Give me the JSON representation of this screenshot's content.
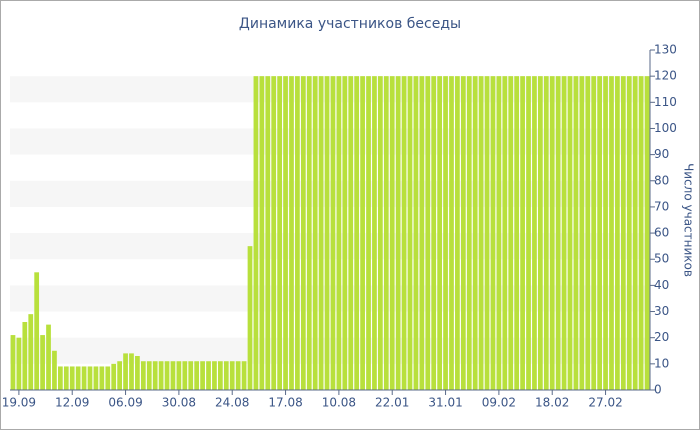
{
  "chart_data": {
    "type": "bar",
    "title": "Динамика участников беседы",
    "y_label": "Число участников",
    "categories": [
      null,
      "19.09",
      null,
      null,
      null,
      null,
      null,
      null,
      null,
      null,
      "12.09",
      null,
      null,
      null,
      null,
      null,
      null,
      null,
      null,
      "06.09",
      null,
      null,
      null,
      null,
      null,
      null,
      null,
      null,
      "30.08",
      null,
      null,
      null,
      null,
      null,
      null,
      null,
      null,
      "24.08",
      null,
      null,
      null,
      null,
      null,
      null,
      null,
      null,
      "17.08",
      null,
      null,
      null,
      null,
      null,
      null,
      null,
      null,
      "10.08",
      null,
      null,
      null,
      null,
      null,
      null,
      null,
      null,
      "22.01",
      null,
      null,
      null,
      null,
      null,
      null,
      null,
      null,
      "31.01",
      null,
      null,
      null,
      null,
      null,
      null,
      null,
      null,
      "09.02",
      null,
      null,
      null,
      null,
      null,
      null,
      null,
      null,
      "18.02",
      null,
      null,
      null,
      null,
      null,
      null,
      null,
      null,
      "27.02",
      null,
      null,
      null,
      null,
      null,
      null,
      null
    ],
    "values": [
      21,
      20,
      26,
      29,
      45,
      21,
      25,
      15,
      9,
      9,
      9,
      9,
      9,
      9,
      9,
      9,
      9,
      10,
      11,
      14,
      14,
      13,
      11,
      11,
      11,
      11,
      11,
      11,
      11,
      11,
      11,
      11,
      11,
      11,
      11,
      11,
      11,
      11,
      11,
      11,
      55,
      120,
      120,
      120,
      120,
      120,
      120,
      120,
      120,
      120,
      120,
      120,
      120,
      120,
      120,
      120,
      120,
      120,
      120,
      120,
      120,
      120,
      120,
      120,
      120,
      120,
      120,
      120,
      120,
      120,
      120,
      120,
      120,
      120,
      120,
      120,
      120,
      120,
      120,
      120,
      120,
      120,
      120,
      120,
      120,
      120,
      120,
      120,
      120,
      120,
      120,
      120,
      120,
      120,
      120,
      120,
      120,
      120,
      120,
      120,
      120,
      120,
      120,
      120,
      120,
      120,
      120,
      120
    ],
    "color": "#b8e03c",
    "ylim": [
      0,
      130
    ],
    "yticks": [
      0,
      10,
      20,
      30,
      40,
      50,
      60,
      70,
      80,
      90,
      100,
      110,
      120,
      130
    ],
    "grid": "bands",
    "y_axis_side": "right"
  }
}
